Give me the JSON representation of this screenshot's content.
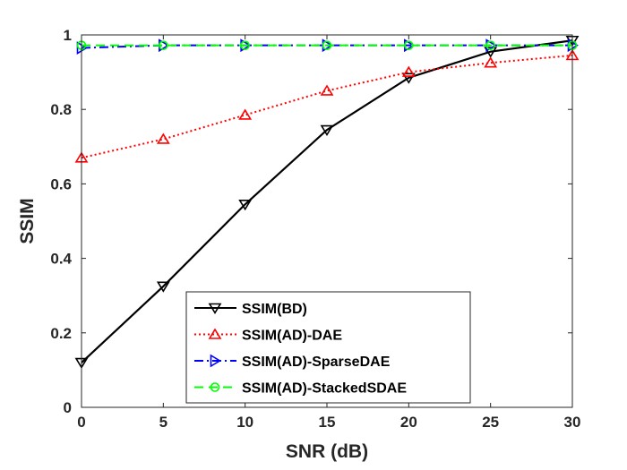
{
  "chart_data": {
    "type": "line",
    "title": "",
    "xlabel": "SNR (dB)",
    "ylabel": "SSIM",
    "x": [
      0,
      5,
      10,
      15,
      20,
      25,
      30
    ],
    "xlim": [
      0,
      30
    ],
    "ylim": [
      0,
      1
    ],
    "xticks": [
      "0",
      "5",
      "10",
      "15",
      "20",
      "25",
      "30"
    ],
    "yticks": [
      "0",
      "0.2",
      "0.4",
      "0.6",
      "0.8",
      "1"
    ],
    "grid": false,
    "legend_position": "bottom-center",
    "series": [
      {
        "name": "SSIM(BD)",
        "color": "#000000",
        "line_style": "solid",
        "marker": "triangle-down",
        "values": [
          0.12,
          0.325,
          0.545,
          0.745,
          0.885,
          0.955,
          0.985
        ]
      },
      {
        "name": "SSIM(AD)-DAE",
        "color": "#ff0000",
        "line_style": "dotted",
        "marker": "triangle-up",
        "values": [
          0.67,
          0.72,
          0.785,
          0.85,
          0.9,
          0.925,
          0.945
        ]
      },
      {
        "name": "SSIM(AD)-SparseDAE",
        "color": "#0000ff",
        "line_style": "dashdot",
        "marker": "triangle-right",
        "values": [
          0.965,
          0.972,
          0.972,
          0.972,
          0.972,
          0.972,
          0.972
        ]
      },
      {
        "name": "SSIM(AD)-StackedSDAE",
        "color": "#00ff00",
        "line_style": "dashed",
        "marker": "circle",
        "values": [
          0.972,
          0.972,
          0.972,
          0.972,
          0.972,
          0.972,
          0.972
        ]
      }
    ]
  }
}
